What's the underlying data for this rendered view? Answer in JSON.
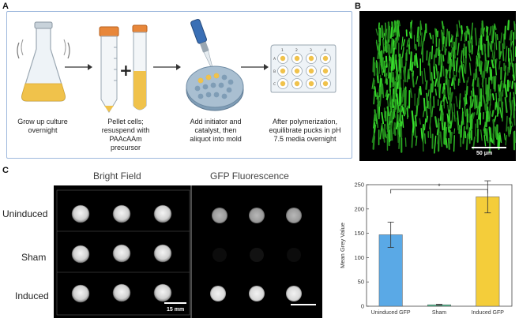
{
  "panel_a": {
    "letter": "A",
    "steps": [
      {
        "caption_lines": [
          "Grow up culture",
          "overnight"
        ]
      },
      {
        "caption_lines": [
          "Pellet cells;",
          "resuspend with",
          "PAAcAAm",
          "precursor"
        ]
      },
      {
        "caption_lines": [
          "Add initiator and",
          "catalyst, then",
          "aliquot into mold"
        ]
      },
      {
        "caption_lines": [
          "After polymerization,",
          "equilibrate pucks in pH",
          "7.5 media overnight"
        ]
      }
    ],
    "plate_cols": [
      "1",
      "2",
      "3",
      "4"
    ],
    "plate_rows": [
      "A",
      "B",
      "C"
    ]
  },
  "panel_b": {
    "letter": "B",
    "scale_label": "50 μm"
  },
  "panel_c": {
    "letter": "C",
    "col_labels": [
      "Bright Field",
      "GFP Fluorescence"
    ],
    "row_labels": [
      "Uninduced",
      "Sham",
      "Induced"
    ],
    "scale_label": "15 mm"
  },
  "chart_data": {
    "type": "bar",
    "categories": [
      "Uninduced GFP",
      "Sham",
      "Induced GFP"
    ],
    "values": [
      147,
      3,
      225
    ],
    "errors": [
      26,
      1,
      33
    ],
    "colors": [
      "#5aa9e6",
      "#4fbf8f",
      "#f4cd3a"
    ],
    "ylabel": "Mean Grey Value",
    "xlabel": "",
    "ylim": [
      0,
      250
    ],
    "yticks": [
      0,
      50,
      100,
      150,
      200,
      250
    ],
    "significance": {
      "from": 0,
      "to": 2,
      "label": "*"
    }
  }
}
